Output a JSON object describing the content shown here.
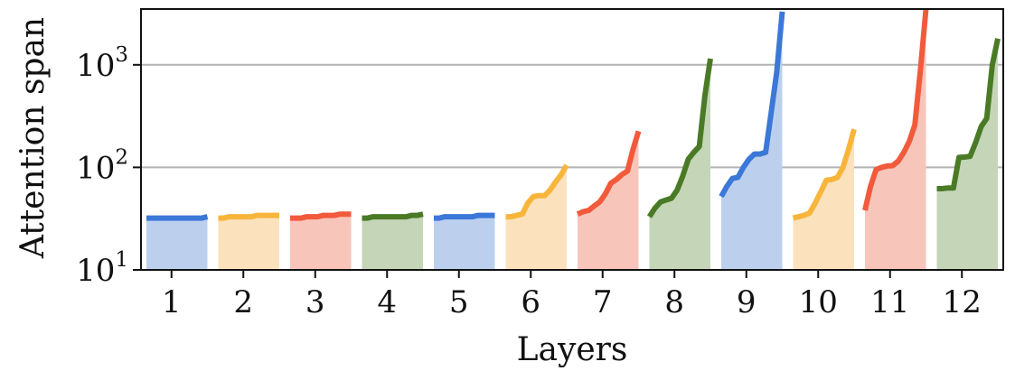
{
  "chart_data": {
    "type": "area",
    "title": "",
    "xlabel": "Layers",
    "ylabel": "Attention span",
    "yscale": "log",
    "ylim": [
      10,
      3500
    ],
    "y_ticks": [
      {
        "value": 10,
        "base": "10",
        "exp": "1"
      },
      {
        "value": 100,
        "base": "10",
        "exp": "2"
      },
      {
        "value": 1000,
        "base": "10",
        "exp": "3"
      }
    ],
    "horizontal_grid": true,
    "categories": [
      "1",
      "2",
      "3",
      "4",
      "5",
      "6",
      "7",
      "8",
      "9",
      "10",
      "11",
      "12"
    ],
    "series": [
      {
        "color": "#3b78d8",
        "fill": "#bcd0ee",
        "values": [
          32,
          32,
          32,
          32,
          32,
          32,
          32,
          32,
          32,
          32,
          32,
          33
        ]
      },
      {
        "color": "#f7b53b",
        "fill": "#fbe2bd",
        "values": [
          32,
          32,
          33,
          33,
          33,
          33,
          33,
          34,
          34,
          34,
          34,
          34
        ]
      },
      {
        "color": "#f25a3c",
        "fill": "#f8c5bb",
        "values": [
          32,
          32,
          32,
          33,
          33,
          33,
          34,
          34,
          34,
          35,
          35,
          35
        ]
      },
      {
        "color": "#4a7a25",
        "fill": "#c5d6b8",
        "values": [
          32,
          32,
          33,
          33,
          33,
          33,
          33,
          33,
          33,
          34,
          34,
          35
        ]
      },
      {
        "color": "#3b78d8",
        "fill": "#bcd0ee",
        "values": [
          32,
          32,
          33,
          33,
          33,
          33,
          33,
          33,
          34,
          34,
          34,
          34
        ]
      },
      {
        "color": "#f7b53b",
        "fill": "#fbe2bd",
        "values": [
          33,
          33,
          34,
          35,
          45,
          52,
          53,
          53,
          60,
          72,
          85,
          105
        ]
      },
      {
        "color": "#f25a3c",
        "fill": "#f8c5bb",
        "values": [
          35,
          37,
          38,
          42,
          46,
          55,
          70,
          76,
          85,
          92,
          150,
          225
        ]
      },
      {
        "color": "#4a7a25",
        "fill": "#c5d6b8",
        "values": [
          33,
          40,
          46,
          48,
          50,
          60,
          82,
          120,
          140,
          160,
          500,
          1150
        ]
      },
      {
        "color": "#3b78d8",
        "fill": "#bcd0ee",
        "values": [
          52,
          65,
          78,
          80,
          100,
          120,
          135,
          135,
          140,
          340,
          850,
          3300
        ]
      },
      {
        "color": "#f7b53b",
        "fill": "#fbe2bd",
        "values": [
          32,
          33,
          34,
          36,
          45,
          58,
          75,
          76,
          80,
          100,
          150,
          235
        ]
      },
      {
        "color": "#f25a3c",
        "fill": "#f8c5bb",
        "values": [
          38,
          65,
          95,
          100,
          103,
          104,
          115,
          140,
          180,
          260,
          900,
          3500
        ]
      },
      {
        "color": "#4a7a25",
        "fill": "#c5d6b8",
        "values": [
          62,
          62,
          63,
          63,
          125,
          126,
          128,
          175,
          250,
          300,
          1000,
          1800
        ]
      }
    ]
  }
}
